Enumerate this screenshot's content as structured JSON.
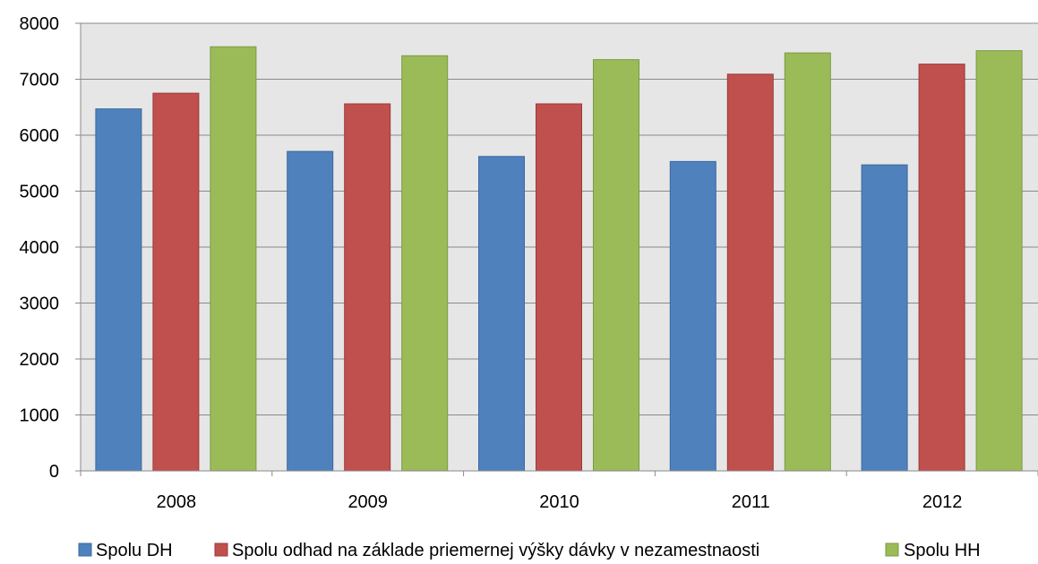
{
  "chart_data": {
    "type": "bar",
    "categories": [
      "2008",
      "2009",
      "2010",
      "2011",
      "2012"
    ],
    "series": [
      {
        "name": "Spolu DH",
        "values": [
          6470,
          5710,
          5620,
          5530,
          5470
        ],
        "color": "#4F81BD"
      },
      {
        "name": "Spolu odhad na základe priemernej výšky dávky v nezamestnaosti",
        "values": [
          6750,
          6560,
          6560,
          7090,
          7270
        ],
        "color": "#C0504D"
      },
      {
        "name": "Spolu HH",
        "values": [
          7580,
          7420,
          7350,
          7470,
          7510
        ],
        "color": "#9BBB59"
      }
    ],
    "ylim": [
      0,
      8000
    ],
    "yticks": [
      0,
      1000,
      2000,
      3000,
      4000,
      5000,
      6000,
      7000,
      8000
    ],
    "grid": true,
    "legend_position": "bottom",
    "plot_background": "#E6E6E6"
  }
}
